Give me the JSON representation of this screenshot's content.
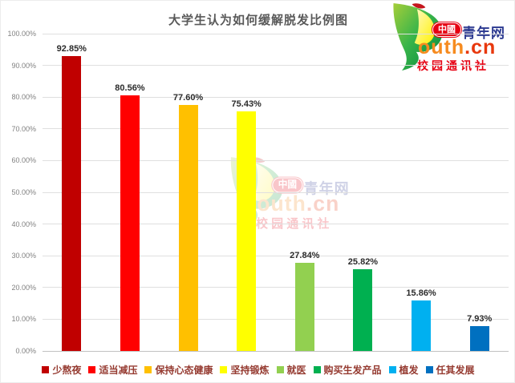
{
  "title": "大学生认为如何缓解脱发比例图",
  "logo": {
    "badge": "中國",
    "site_name": "青年网",
    "domain_prefix": "outh",
    "domain_suffix": ".cn",
    "subtitle": "校园通讯社",
    "colors": {
      "badge_bg": "#E60012",
      "badge_text": "#FFFFFF",
      "site_name": "#2B3990",
      "domain_prefix": "#F68B1F",
      "domain_suffix": "#E8380D",
      "subtitle": "#E60012",
      "leaf_green": "#39B54A",
      "leaf_yellow": "#FFF200"
    }
  },
  "chart_data": {
    "type": "bar",
    "title": "大学生认为如何缓解脱发比例图",
    "categories": [
      "少熬夜",
      "适当减压",
      "保持心态健康",
      "坚持锻炼",
      "就医",
      "购买生发产品",
      "植发",
      "任其发展"
    ],
    "values": [
      92.85,
      80.56,
      77.6,
      75.43,
      27.84,
      25.82,
      15.86,
      7.93
    ],
    "value_labels": [
      "92.85%",
      "80.56%",
      "77.60%",
      "75.43%",
      "27.84%",
      "25.82%",
      "15.86%",
      "7.93%"
    ],
    "bar_colors": [
      "#C00000",
      "#FF0000",
      "#FFC000",
      "#FFFF00",
      "#92D050",
      "#00B050",
      "#00B0F0",
      "#0070C0"
    ],
    "ylim": [
      0,
      100
    ],
    "y_tick_step": 10,
    "y_tick_labels": [
      "0.00%",
      "10.00%",
      "20.00%",
      "30.00%",
      "40.00%",
      "50.00%",
      "60.00%",
      "70.00%",
      "80.00%",
      "90.00%",
      "100.00%"
    ],
    "grid": true,
    "legend_position": "bottom",
    "xlabel": "",
    "ylabel": "",
    "colors": {
      "title_text": "#595959",
      "value_label_text": "#2B2B2B",
      "tick_text": "#808080",
      "gridline": "#DFDFDF",
      "axis_line": "#C2C2C2",
      "legend_text": "#953A30"
    }
  }
}
